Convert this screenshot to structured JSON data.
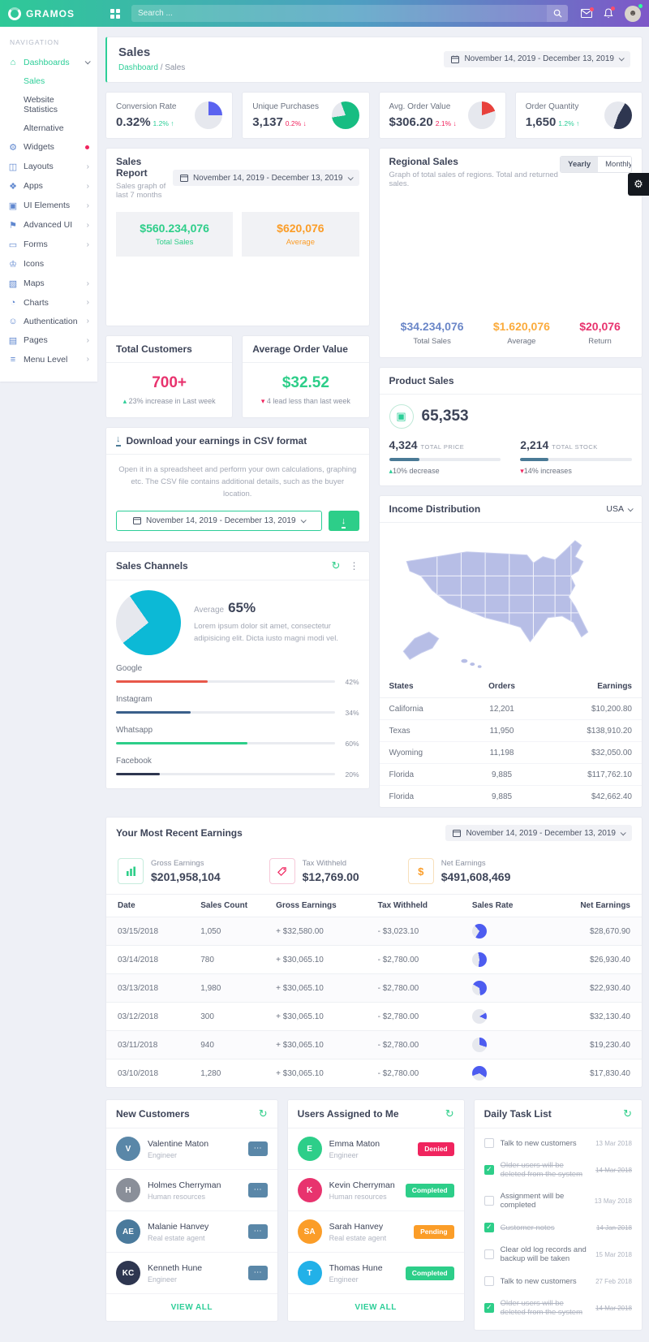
{
  "header": {
    "logo": "GRAMOS",
    "search_placeholder": "Search ..."
  },
  "sidebar": {
    "section_label": "NAVIGATION",
    "items": [
      {
        "label": "Dashboards",
        "glyph": "⌂",
        "chev": ""
      },
      {
        "label": "Sales"
      },
      {
        "label": "Website Statistics"
      },
      {
        "label": "Alternative"
      },
      {
        "label": "Widgets",
        "glyph": "⚙",
        "chev": ""
      },
      {
        "label": "Layouts",
        "glyph": "◫",
        "chev": "›"
      },
      {
        "label": "Apps",
        "glyph": "❖",
        "chev": "›"
      },
      {
        "label": "UI Elements",
        "glyph": "▣",
        "chev": "›"
      },
      {
        "label": "Advanced UI",
        "glyph": "⚑",
        "chev": "›"
      },
      {
        "label": "Forms",
        "glyph": "▭",
        "chev": "›"
      },
      {
        "label": "Icons",
        "glyph": "♔",
        "chev": ""
      },
      {
        "label": "Maps",
        "glyph": "▧",
        "chev": "›"
      },
      {
        "label": "Charts",
        "glyph": "◔",
        "chev": "›"
      },
      {
        "label": "Authentication",
        "glyph": "☺",
        "chev": "›"
      },
      {
        "label": "Pages",
        "glyph": "▤",
        "chev": "›"
      },
      {
        "label": "Menu Level",
        "glyph": "≡",
        "chev": "›"
      }
    ]
  },
  "page": {
    "title": "Sales",
    "breadcrumb_parent": "Dashboard",
    "breadcrumb_sep": "/",
    "breadcrumb_current": "Sales",
    "date_range": "November 14, 2019 - December 13, 2019"
  },
  "stats": [
    {
      "label": "Conversion Rate",
      "value": "0.32%",
      "delta": "1.2% ↑",
      "delta_color": "#2dce98",
      "pie": {
        "pct": 25,
        "color": "#5b63f0",
        "from": 0
      }
    },
    {
      "label": "Unique Purchases",
      "value": "3,137",
      "delta": "0.2% ↓",
      "delta_color": "#f0245e",
      "pie": {
        "pct": 78,
        "color": "#17bd82",
        "from": 340
      }
    },
    {
      "label": "Avg. Order Value",
      "value": "$306.20",
      "delta": "2.1% ↓",
      "delta_color": "#f0245e",
      "pie": {
        "pct": 20,
        "color": "#e8413c",
        "from": 0
      }
    },
    {
      "label": "Order Quantity",
      "value": "1,650",
      "delta": "1.2% ↑",
      "delta_color": "#2dce98",
      "pie": {
        "pct": 47,
        "color": "#2e3650",
        "from": 30
      }
    }
  ],
  "sales_report": {
    "title": "Sales Report",
    "subtitle": "Sales graph of last 7 months",
    "date_range": "November 14, 2019 - December 13, 2019",
    "total_value": "$560.234,076",
    "total_label": "Total Sales",
    "avg_value": "$620,076",
    "avg_label": "Average",
    "total_color": "#2dce89",
    "avg_color": "#fb9d28"
  },
  "regional_sales": {
    "title": "Regional Sales",
    "subtitle": "Graph of total sales of regions. Total and returned sales.",
    "toggle_yearly": "Yearly",
    "toggle_monthly": "Monthly",
    "stats": [
      {
        "value": "$34.234,076",
        "label": "Total Sales",
        "color": "#6b87c8"
      },
      {
        "value": "$1.620,076",
        "label": "Average",
        "color": "#fbab3c"
      },
      {
        "value": "$20,076",
        "label": "Return",
        "color": "#e8336e"
      }
    ]
  },
  "total_customers": {
    "title": "Total Customers",
    "value": "700+",
    "value_color": "#e8336e",
    "arrow": "▴",
    "arrow_color": "#2dce98",
    "note": "23% increase in Last week"
  },
  "avg_order": {
    "title": "Average Order Value",
    "value": "$32.52",
    "value_color": "#2dce89",
    "arrow": "▾",
    "arrow_color": "#f0245e",
    "note": "4 lead less than last week"
  },
  "product_sales": {
    "title": "Product Sales",
    "total": "65,353",
    "cube_glyph": "▣",
    "items": [
      {
        "value": "4,324",
        "label": "TOTAL PRICE",
        "bar_pct": "27%",
        "bar_color": "#4a7a96",
        "arrow": "▴",
        "arrow_color": "#2dce98",
        "note": "10% decrease"
      },
      {
        "value": "2,214",
        "label": "TOTAL STOCK",
        "bar_pct": "25%",
        "bar_color": "#4a7a96",
        "arrow": "▾",
        "arrow_color": "#f0245e",
        "note": "14% increases"
      }
    ]
  },
  "csv_card": {
    "title": "Download your earnings in CSV format",
    "body": "Open it in a spreadsheet and perform your own calculations, graphing etc. The CSV file contains additional details, such as the buyer location.",
    "date_range": "November 14, 2019 - December 13, 2019",
    "download_glyph": "↓"
  },
  "sales_channels": {
    "title": "Sales Channels",
    "refresh_glyph": "↻",
    "kebab_glyph": "⋮",
    "average_label": "Average",
    "average_value": "65%",
    "desc": "Lorem ipsum dolor sit amet, consectetur adipisicing elit. Dicta iusto magni modi vel.",
    "pie": {
      "pct": 74,
      "color": "#0cb9d6",
      "from": 325
    },
    "channels": [
      {
        "name": "Google",
        "pct": "42%",
        "color": "#e8584a"
      },
      {
        "name": "Instagram",
        "pct": "34%",
        "color": "#3a5f8a"
      },
      {
        "name": "Whatsapp",
        "pct": "60%",
        "color": "#2dce89"
      },
      {
        "name": "Facebook",
        "pct": "20%",
        "color": "#2e3650"
      }
    ]
  },
  "income": {
    "title": "Income Distribution",
    "region": "USA",
    "headers": [
      "States",
      "Orders",
      "Earnings"
    ],
    "rows": [
      [
        "California",
        "12,201",
        "$10,200.80"
      ],
      [
        "Texas",
        "11,950",
        "$138,910.20"
      ],
      [
        "Wyoming",
        "11,198",
        "$32,050.00"
      ],
      [
        "Florida",
        "9,885",
        "$117,762.10"
      ],
      [
        "Florida",
        "9,885",
        "$42,662.40"
      ]
    ]
  },
  "earnings": {
    "title": "Your Most Recent Earnings",
    "date_range": "November 14, 2019 - December 13, 2019",
    "summary": [
      {
        "label": "Gross Earnings",
        "value": "$201,958,104"
      },
      {
        "label": "Tax Withheld",
        "value": "$12,769.00"
      },
      {
        "label": "Net Earnings",
        "value": "$491,608,469",
        "icon_glyph": "$"
      }
    ],
    "headers": [
      "Date",
      "Sales Count",
      "Gross Earnings",
      "Tax Withheld",
      "Sales Rate",
      "Net Earnings"
    ],
    "rows": [
      {
        "date": "03/15/2018",
        "count": "1,050",
        "gross": "+ $32,580.00",
        "tax": "- $3,023.10",
        "pie": {
          "pct": 70,
          "color": "#4d5cf0",
          "from": 320
        },
        "net": "$28,670.90"
      },
      {
        "date": "03/14/2018",
        "count": "780",
        "gross": "+ $30,065.10",
        "tax": "- $2,780.00",
        "pie": {
          "pct": 55,
          "color": "#4d5cf0",
          "from": 350
        },
        "net": "$26,930.40"
      },
      {
        "date": "03/13/2018",
        "count": "1,980",
        "gross": "+ $30,065.10",
        "tax": "- $2,780.00",
        "pie": {
          "pct": 65,
          "color": "#4d5cf0",
          "from": 300
        },
        "net": "$22,930.40"
      },
      {
        "date": "03/12/2018",
        "count": "300",
        "gross": "+ $30,065.10",
        "tax": "- $2,780.00",
        "pie": {
          "pct": 15,
          "color": "#4d5cf0",
          "from": 60
        },
        "net": "$32,130.40"
      },
      {
        "date": "03/11/2018",
        "count": "940",
        "gross": "+ $30,065.10",
        "tax": "- $2,780.00",
        "pie": {
          "pct": 30,
          "color": "#4d5cf0",
          "from": 0
        },
        "net": "$19,230.40"
      },
      {
        "date": "03/10/2018",
        "count": "1,280",
        "gross": "+ $30,065.10",
        "tax": "- $2,780.00",
        "pie": {
          "pct": 65,
          "color": "#4d5cf0",
          "from": 250
        },
        "net": "$17,830.40"
      }
    ]
  },
  "new_customers": {
    "title": "New Customers",
    "refresh_glyph": "↻",
    "more_glyph": "⋯",
    "view_all": "VIEW ALL",
    "people": [
      {
        "name": "Valentine Maton",
        "role": "Engineer",
        "initials": "V",
        "avatar_color": "#5a87a8"
      },
      {
        "name": "Holmes Cherryman",
        "role": "Human resources",
        "initials": "H",
        "avatar_color": "#8a8f99"
      },
      {
        "name": "Malanie Hanvey",
        "role": "Real estate agent",
        "initials": "AE",
        "avatar_color": "#4a7a9c"
      },
      {
        "name": "Kenneth Hune",
        "role": "Engineer",
        "initials": "KC",
        "avatar_color": "#2e3650"
      }
    ]
  },
  "users_assigned": {
    "title": "Users Assigned to Me",
    "refresh_glyph": "↻",
    "view_all": "VIEW ALL",
    "people": [
      {
        "name": "Emma Maton",
        "role": "Engineer",
        "initials": "E",
        "avatar_color": "#2dce89",
        "badge": "Denied",
        "badge_color": "#f0245e"
      },
      {
        "name": "Kevin Cherryman",
        "role": "Human resources",
        "initials": "K",
        "avatar_color": "#e8336e",
        "badge": "Completed",
        "badge_color": "#2dce89"
      },
      {
        "name": "Sarah Hanvey",
        "role": "Real estate agent",
        "initials": "SA",
        "avatar_color": "#fb9d28",
        "badge": "Pending",
        "badge_color": "#fb9d28"
      },
      {
        "name": "Thomas Hune",
        "role": "Engineer",
        "initials": "T",
        "avatar_color": "#22b1e8",
        "badge": "Completed",
        "badge_color": "#2dce89"
      }
    ]
  },
  "daily_tasks": {
    "title": "Daily Task List",
    "refresh_glyph": "↻",
    "tasks": [
      {
        "label": "Talk to new customers",
        "date": "13 Mar 2018",
        "done": false
      },
      {
        "label": "Older users will be deleted from the system",
        "date": "14 Mar 2018",
        "done": true
      },
      {
        "label": "Assignment will be completed",
        "date": "13 May 2018",
        "done": false
      },
      {
        "label": "Customer notes",
        "date": "14 Jan 2018",
        "done": true
      },
      {
        "label": "Clear old log records and backup will be taken",
        "date": "15 Mar 2018",
        "done": false
      },
      {
        "label": "Talk to new customers",
        "date": "27 Feb 2018",
        "done": false
      },
      {
        "label": "Older users will be deleted from the system",
        "date": "14 Mar 2018",
        "done": true
      }
    ]
  },
  "settings": {
    "gear_glyph": "⚙"
  }
}
